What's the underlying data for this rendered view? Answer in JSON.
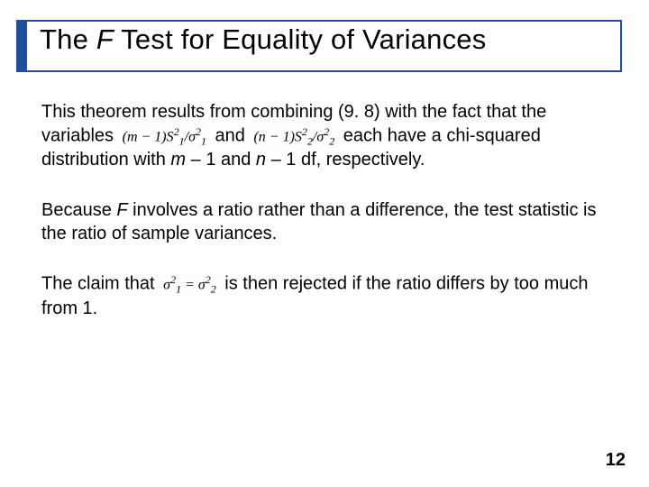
{
  "slide": {
    "title_prefix": "The ",
    "title_em": "F",
    "title_rest": " Test for Equality of Variances",
    "title_border_color": "#1f4e9c",
    "title_accent_color": "#1f4e9c",
    "title_fontsize": 31,
    "body_fontsize": 20,
    "page_number": "12"
  },
  "paragraphs": {
    "p1a": "This theorem results from combining (9. 8) with the fact that the variables ",
    "p1_formula1": "(m − 1)S₁²/σ₁²",
    "p1_mid": " and ",
    "p1_formula2": "(n − 1)S₂²/σ₂²",
    "p1b": " each have a chi-squared distribution with ",
    "p1_m": "m",
    "p1_c": " – 1 and ",
    "p1_n": "n",
    "p1_d": " – 1 df, respectively.",
    "p2a": "Because ",
    "p2_F": "F",
    "p2b": " involves a ratio rather than a difference, the test statistic is the ratio of sample variances.",
    "p3a": "The claim that ",
    "p3_formula": "σ₁² = σ₂²",
    "p3b": " is then rejected if the ratio differs by too much from 1."
  }
}
